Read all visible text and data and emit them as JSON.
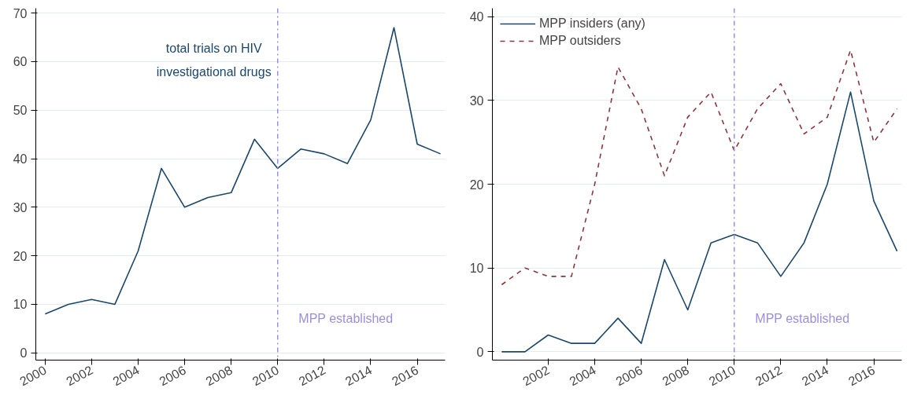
{
  "chart_data": [
    {
      "type": "line",
      "x": [
        2000,
        2001,
        2002,
        2003,
        2004,
        2005,
        2006,
        2007,
        2008,
        2009,
        2010,
        2011,
        2012,
        2013,
        2014,
        2015,
        2016,
        2017
      ],
      "series": [
        {
          "color": "#1a476f",
          "values": [
            8,
            10,
            11,
            10,
            21,
            38,
            30,
            32,
            33,
            44,
            38,
            42,
            41,
            39,
            48,
            67,
            43,
            41
          ]
        }
      ],
      "xlim": [
        1999.6,
        2017.2
      ],
      "xticks": [
        2000,
        2002,
        2004,
        2006,
        2008,
        2010,
        2012,
        2014,
        2016
      ],
      "ylim": [
        -1.5,
        71
      ],
      "yticks": [
        0,
        10,
        20,
        30,
        40,
        50,
        60,
        70
      ],
      "grid": "y",
      "legend": false,
      "line_style": "solid",
      "marker": "none",
      "ref_lines": [
        {
          "axis": "x",
          "value": 2010,
          "label": "MPP established",
          "color": "#9b8fe0",
          "line_style": "dashdot"
        }
      ],
      "annotations": [
        "total trials on HIV\ninvestigational drugs"
      ]
    },
    {
      "type": "line",
      "x": [
        2000,
        2001,
        2002,
        2003,
        2004,
        2005,
        2006,
        2007,
        2008,
        2009,
        2010,
        2011,
        2012,
        2013,
        2014,
        2015,
        2016,
        2017
      ],
      "series": [
        {
          "name": "MPP insiders (any)",
          "color": "#1a476f",
          "line_style": "solid",
          "values": [
            0,
            0,
            2,
            1,
            1,
            4,
            1,
            11,
            5,
            13,
            14,
            13,
            9,
            13,
            20,
            31,
            18,
            12
          ]
        },
        {
          "name": "MPP outsiders",
          "color": "#90353b",
          "line_style": "dashed",
          "values": [
            8,
            10,
            9,
            9,
            20,
            34,
            29,
            21,
            28,
            31,
            24,
            29,
            32,
            26,
            28,
            36,
            25,
            29
          ]
        }
      ],
      "xlim": [
        1999.6,
        2017.2
      ],
      "xticks": [
        2002,
        2004,
        2006,
        2008,
        2010,
        2012,
        2014,
        2016
      ],
      "ylim": [
        -1,
        41
      ],
      "yticks": [
        0,
        10,
        20,
        30,
        40
      ],
      "grid": "y",
      "legend": "top left",
      "marker": "none",
      "ref_lines": [
        {
          "axis": "x",
          "value": 2010,
          "label": "MPP established",
          "color": "#9b8fe0",
          "line_style": "dashdot"
        }
      ]
    }
  ]
}
